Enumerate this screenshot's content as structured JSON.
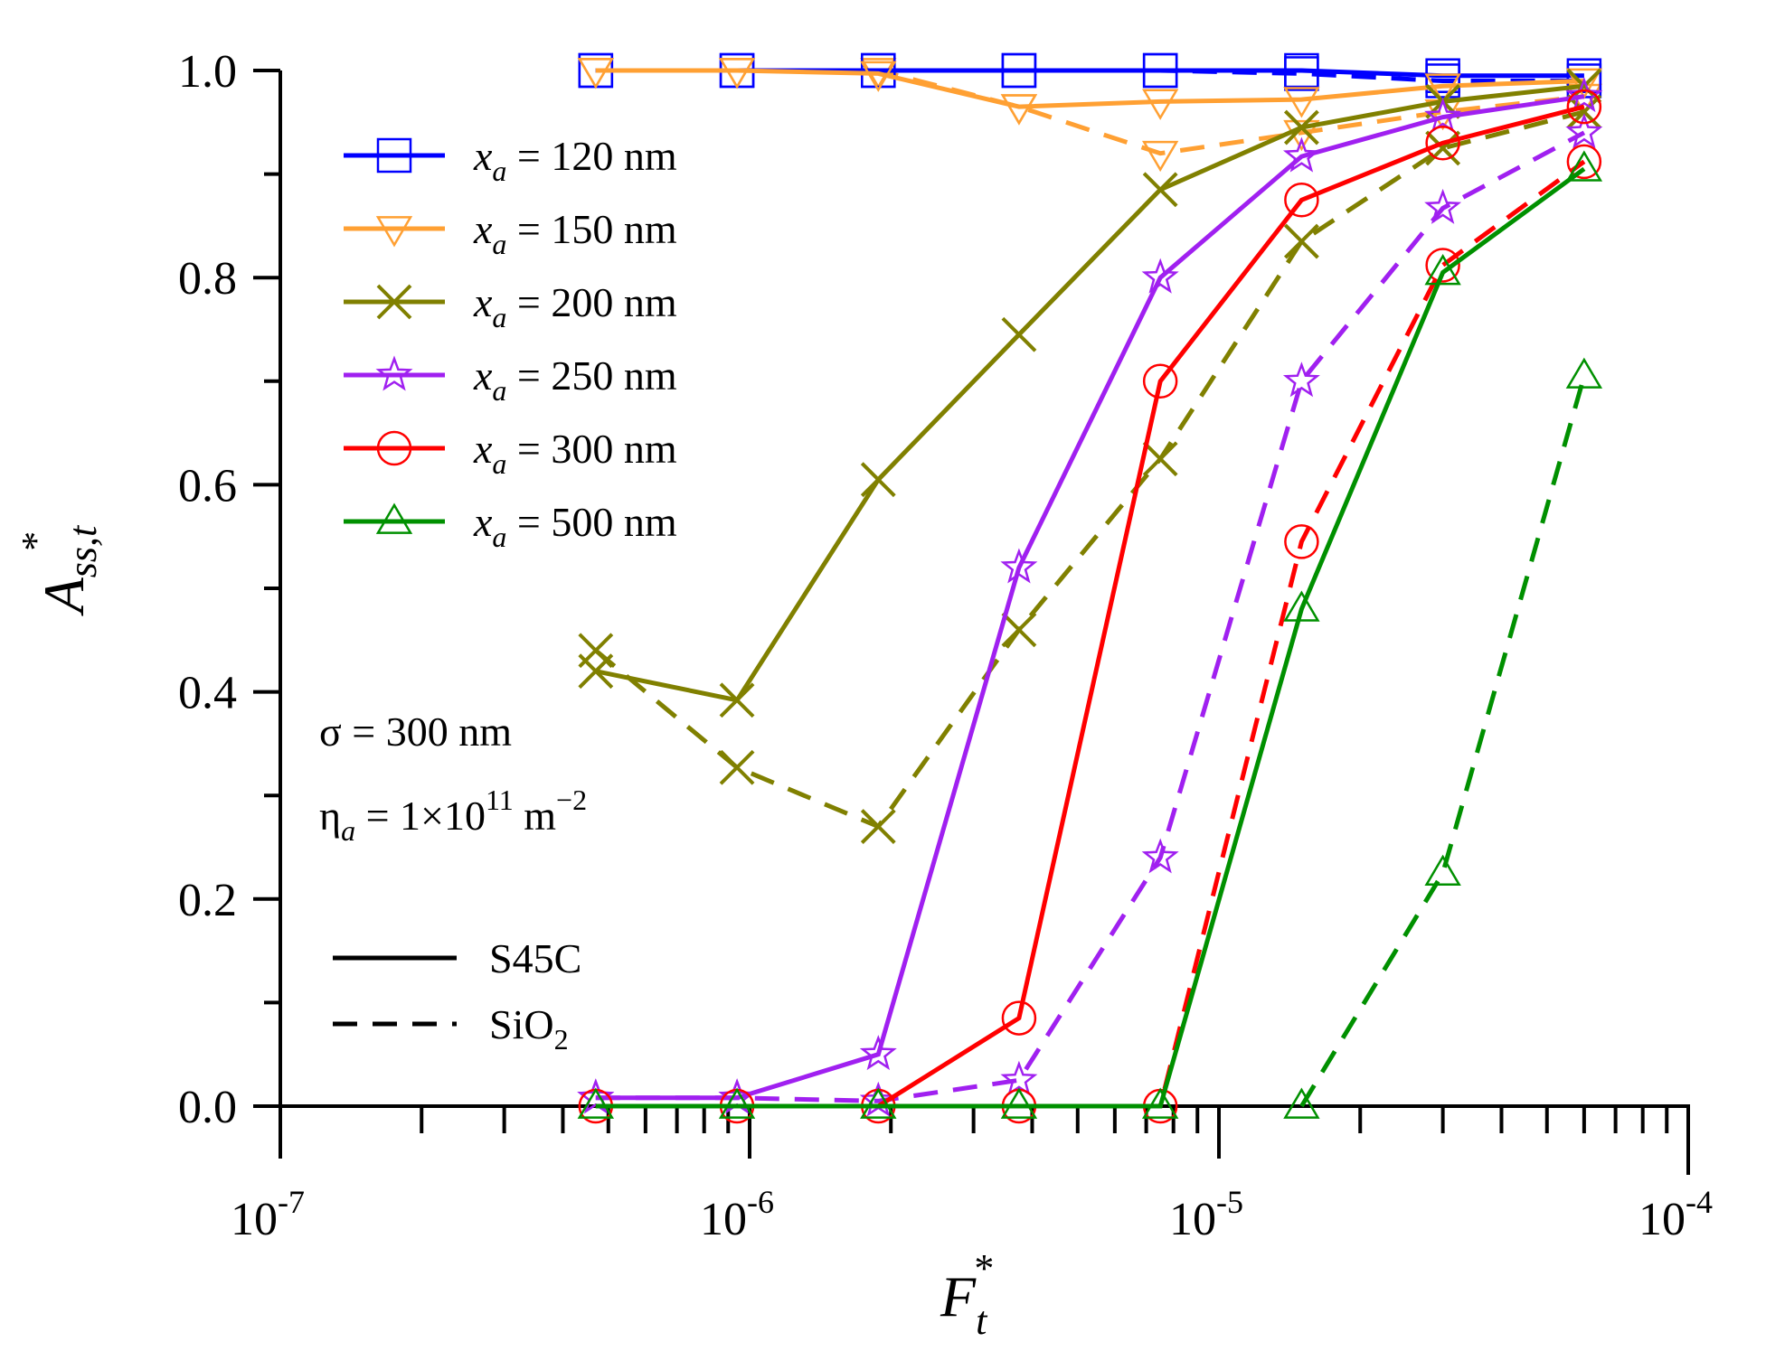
{
  "chart_data": {
    "type": "line",
    "xscale": "log",
    "xlim": [
      1e-07,
      0.0001
    ],
    "ylim": [
      0.0,
      1.0
    ],
    "x_tick_labels": [
      {
        "base": "10",
        "exp": "-7"
      },
      {
        "base": "10",
        "exp": "-6"
      },
      {
        "base": "10",
        "exp": "-5"
      },
      {
        "base": "10",
        "exp": "-4"
      }
    ],
    "y_tick_labels": [
      "0.0",
      "0.2",
      "0.4",
      "0.6",
      "0.8",
      "1.0"
    ],
    "xlabel": {
      "main": "F",
      "sub": "t",
      "sup": "*"
    },
    "ylabel": {
      "main": "A",
      "sub": "ss,t",
      "sup": "*"
    },
    "x": [
      4.7e-07,
      9.4e-07,
      1.88e-06,
      3.75e-06,
      7.5e-06,
      1.5e-05,
      3e-05,
      6e-05
    ],
    "series": [
      {
        "label_var": "x",
        "label_sub": "a",
        "label_rest": " = 120 nm",
        "color": "#0000ff",
        "marker": "square",
        "s45c": [
          1.0,
          1.0,
          1.0,
          1.0,
          1.0,
          1.0,
          0.995,
          0.995
        ],
        "sio2": [
          1.0,
          1.0,
          1.0,
          1.0,
          1.0,
          0.997,
          0.99,
          0.99
        ]
      },
      {
        "label_var": "x",
        "label_sub": "a",
        "label_rest": " = 150 nm",
        "color": "#ffa033",
        "marker": "triangle-down",
        "s45c": [
          1.0,
          1.0,
          0.997,
          0.965,
          0.97,
          0.972,
          0.985,
          0.99
        ],
        "sio2": [
          1.0,
          1.0,
          1.0,
          0.965,
          0.92,
          0.94,
          0.96,
          0.975
        ]
      },
      {
        "label_var": "x",
        "label_sub": "a",
        "label_rest": " = 200 nm",
        "color": "#808000",
        "marker": "cross",
        "s45c": [
          0.42,
          0.392,
          0.605,
          0.745,
          0.885,
          0.945,
          0.97,
          0.985
        ],
        "sio2": [
          0.44,
          0.327,
          0.27,
          0.46,
          0.625,
          0.835,
          0.925,
          0.96
        ]
      },
      {
        "label_var": "x",
        "label_sub": "a",
        "label_rest": " = 250 nm",
        "color": "#a020f0",
        "marker": "star",
        "s45c": [
          0.008,
          0.008,
          0.05,
          0.52,
          0.8,
          0.917,
          0.955,
          0.975
        ],
        "sio2": [
          0.008,
          0.008,
          0.005,
          0.025,
          0.24,
          0.7,
          0.867,
          0.94
        ]
      },
      {
        "label_var": "x",
        "label_sub": "a",
        "label_rest": " = 300 nm",
        "color": "#ff0000",
        "marker": "circle",
        "s45c": [
          0.0,
          0.0,
          0.0,
          0.085,
          0.7,
          0.875,
          0.93,
          0.965
        ],
        "sio2": [
          null,
          null,
          null,
          0.0,
          0.0,
          0.545,
          0.812,
          0.912
        ]
      },
      {
        "label_var": "x",
        "label_sub": "a",
        "label_rest": " = 500 nm",
        "color": "#009000",
        "marker": "triangle-up",
        "s45c": [
          0.0,
          0.0,
          0.0,
          0.0,
          0.0,
          0.48,
          0.805,
          0.905
        ],
        "sio2": [
          null,
          null,
          null,
          null,
          null,
          0.0,
          0.225,
          0.705
        ]
      }
    ],
    "annotations": {
      "sigma": {
        "symbol": "σ",
        "rest": " = 300 nm"
      },
      "eta": {
        "symbol": "η",
        "sub": "a",
        "mid": " = 1×10",
        "sup": "11",
        "unit": " m",
        "unit_sup": "−2"
      }
    },
    "style_legend": {
      "solid": "S45C",
      "dashed_main": "SiO",
      "dashed_sub": "2"
    }
  }
}
